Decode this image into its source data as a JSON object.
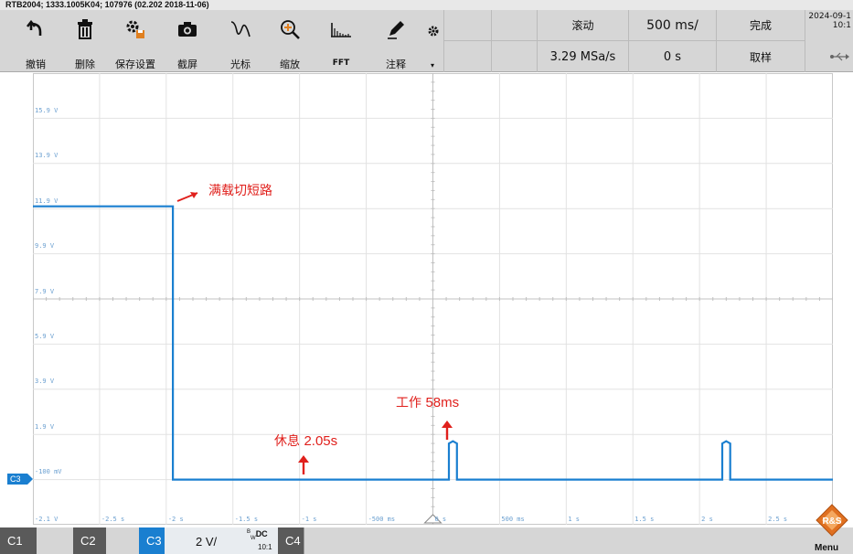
{
  "title_bar": "RTB2004; 1333.1005K04; 107976 (02.202 2018-11-06)",
  "toolbar": [
    {
      "icon": "undo-icon",
      "label": "撤销"
    },
    {
      "icon": "delete-icon",
      "label": "删除"
    },
    {
      "icon": "save-settings-icon",
      "label": "保存设置"
    },
    {
      "icon": "camera-icon",
      "label": "截屏"
    },
    {
      "icon": "cursor-icon",
      "label": "光标"
    },
    {
      "icon": "zoom-icon",
      "label": "缩放"
    },
    {
      "icon": "fft-icon",
      "label": "FFT"
    },
    {
      "icon": "annotate-icon",
      "label": "注释"
    }
  ],
  "status": {
    "roll": "滚动",
    "timebase": "500 ms/",
    "state": "完成",
    "sample_rate": "3.29 MSa/s",
    "offset": "0 s",
    "acq_mode": "取样",
    "date": "2024-09-1",
    "time": "10:1"
  },
  "voltage_labels": [
    "15.9 V",
    "13.9 V",
    "11.9 V",
    "9.9 V",
    "7.9 V",
    "5.9 V",
    "3.9 V",
    "1.9 V",
    "-100 mV",
    "-2.1 V"
  ],
  "time_labels": [
    "-2.5 s",
    "-2 s",
    "-1.5 s",
    "-1 s",
    "-500 ms",
    "0 s",
    "500 ms",
    "1 s",
    "1.5 s",
    "2 s",
    "2.5 s"
  ],
  "annotations": {
    "a1": "满载切短路",
    "a2_prefix": "休息 ",
    "a2_value": "2.05s",
    "a3_prefix": "工作 ",
    "a3_value": "58ms"
  },
  "channel_marker": "C3",
  "channels": {
    "c1": "C1",
    "c2": "C2",
    "c3": "C3",
    "c4": "C4",
    "scale": "2 V/",
    "coupling_sup": "B",
    "coupling_sub": "W",
    "coupling": "DC",
    "probe": "10:1"
  },
  "menu_label": "Menu",
  "colors": {
    "trace": "#1a7fd0",
    "annotation": "#e0201c",
    "active_channel": "#1a7fd0",
    "dark_channel": "#5a5a5a"
  },
  "chart_data": {
    "type": "line",
    "xlabel": "",
    "ylabel": "",
    "xlim": [
      -3,
      3
    ],
    "ylim": [
      -2.1,
      17.9
    ],
    "grid": true,
    "series": [
      {
        "x": [
          -3,
          -1.95,
          -1.95,
          0.12,
          0.12,
          0.15,
          0.18,
          0.18,
          2.17,
          2.17,
          2.2,
          2.23,
          2.23,
          3
        ],
        "y": [
          12.0,
          12.0,
          -0.1,
          -0.1,
          1.5,
          1.6,
          1.5,
          -0.1,
          -0.1,
          1.5,
          1.6,
          1.5,
          -0.1,
          -0.1
        ]
      }
    ]
  }
}
